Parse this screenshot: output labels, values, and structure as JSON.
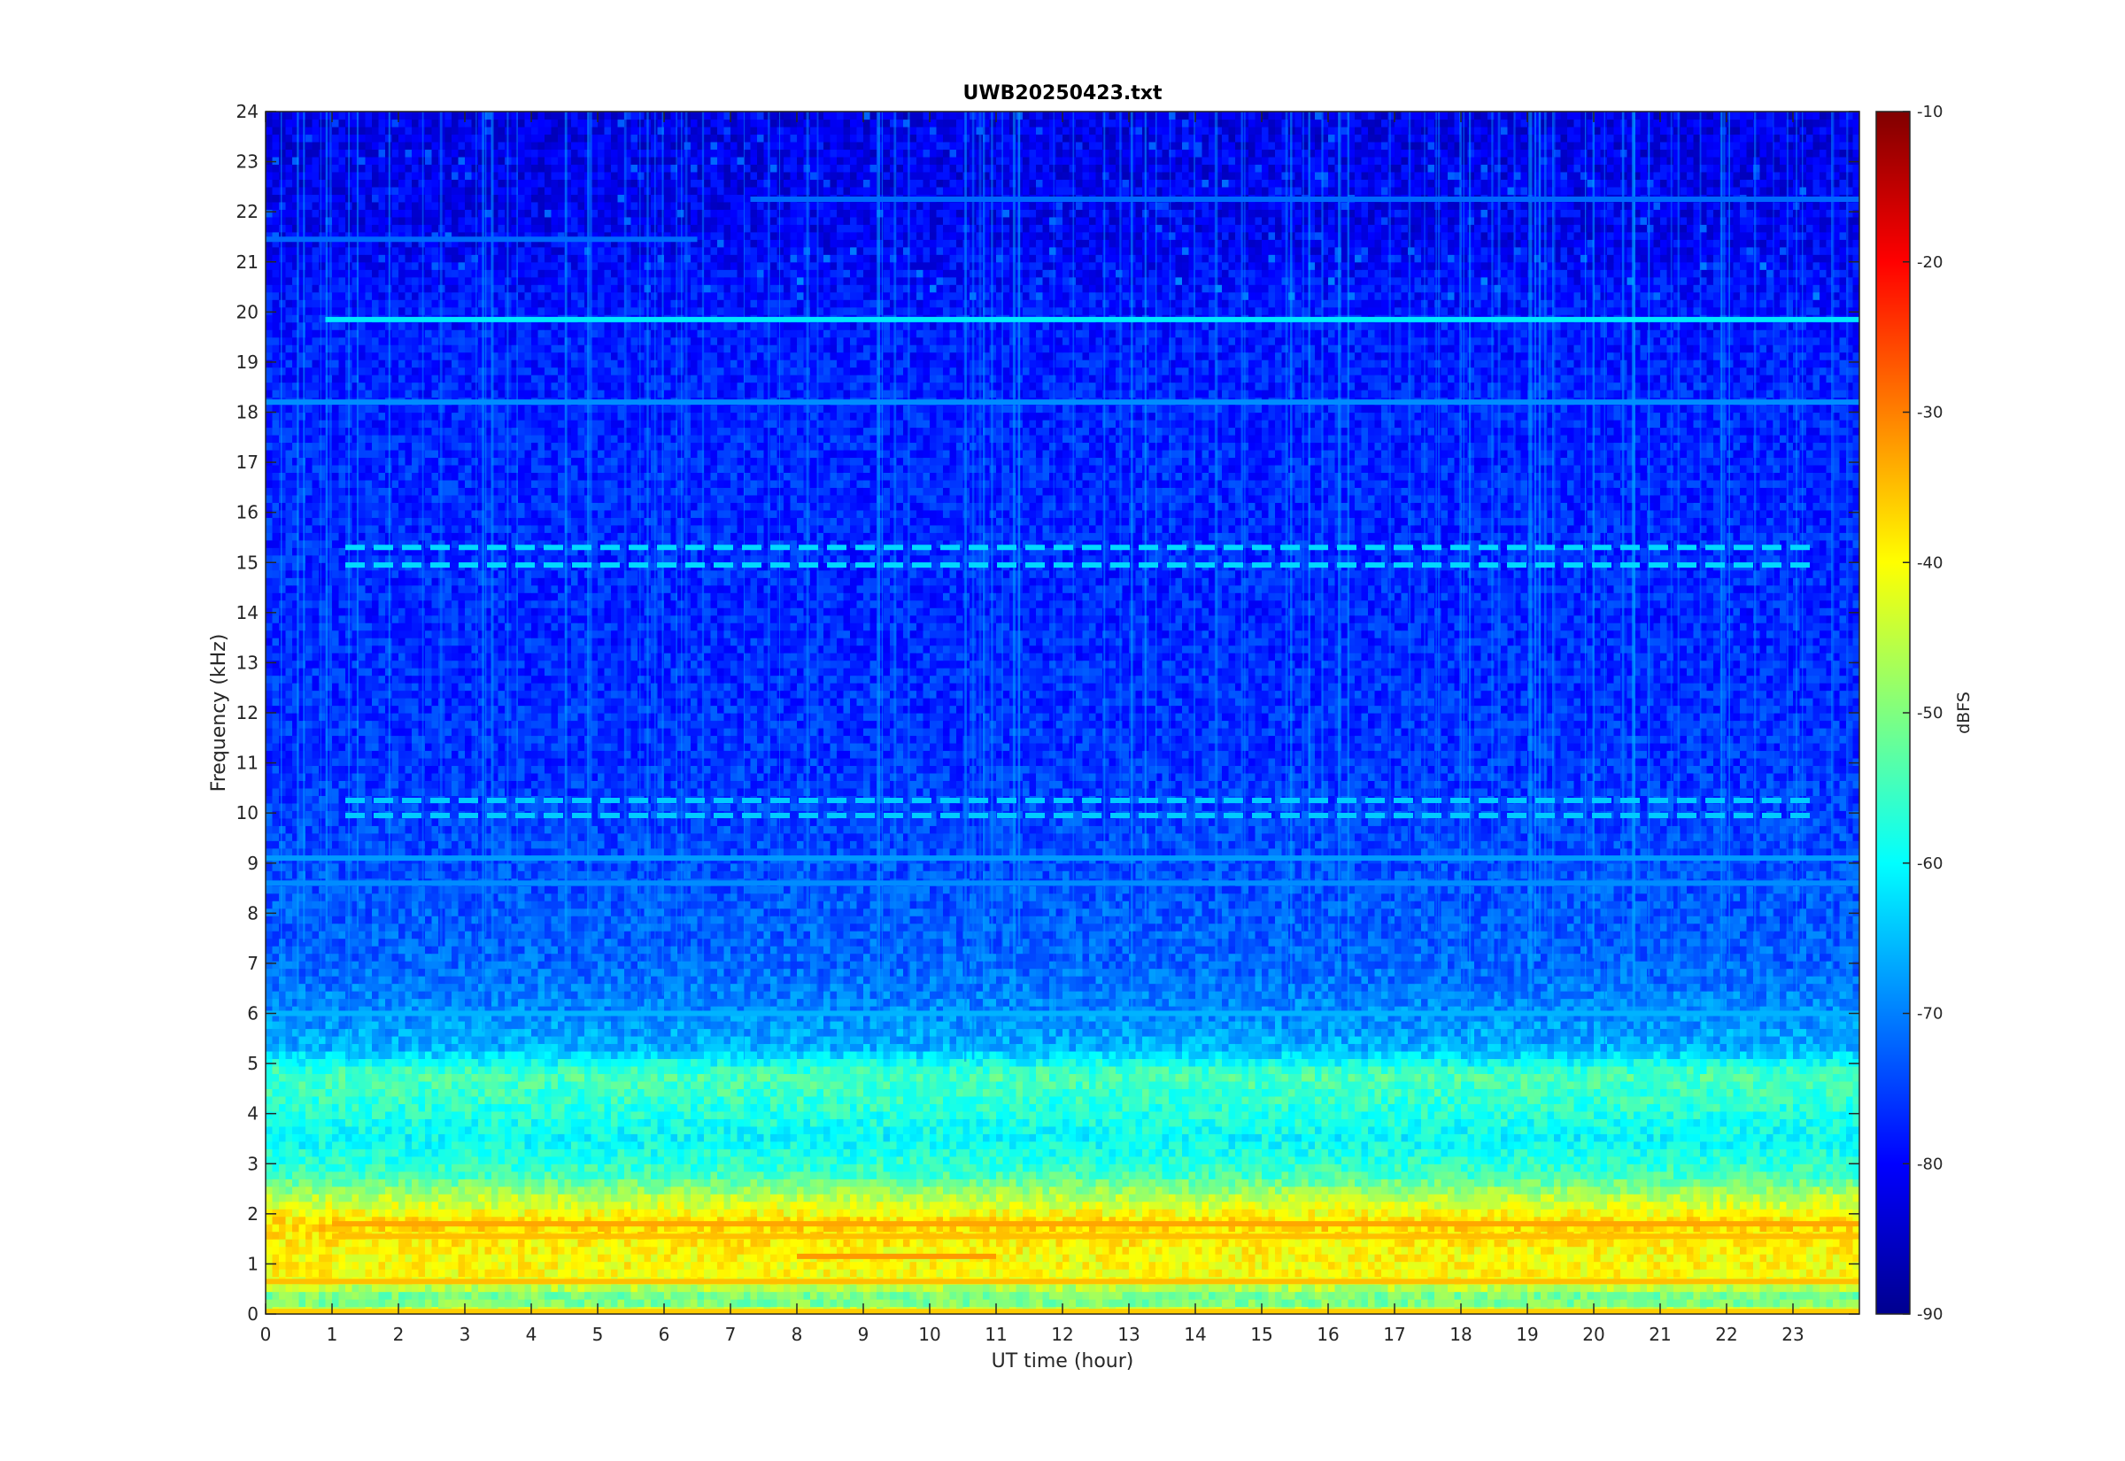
{
  "chart_data": {
    "type": "heatmap",
    "title": "UWB20250423.txt",
    "xlabel": "UT time (hour)",
    "ylabel": "Frequency (kHz)",
    "xlim": [
      0,
      24
    ],
    "ylim": [
      0,
      24
    ],
    "x_ticks": [
      0,
      1,
      2,
      3,
      4,
      5,
      6,
      7,
      8,
      9,
      10,
      11,
      12,
      13,
      14,
      15,
      16,
      17,
      18,
      19,
      20,
      21,
      22,
      23
    ],
    "y_ticks": [
      0,
      1,
      2,
      3,
      4,
      5,
      6,
      7,
      8,
      9,
      10,
      11,
      12,
      13,
      14,
      15,
      16,
      17,
      18,
      19,
      20,
      21,
      22,
      23,
      24
    ],
    "colorbar": {
      "label": "dBFS",
      "range": [
        -90,
        -10
      ],
      "ticks": [
        -10,
        -20,
        -30,
        -40,
        -50,
        -60,
        -70,
        -80,
        -90
      ],
      "colormap": "jet"
    },
    "grid": false,
    "level_profile": [
      {
        "freq_khz": 0.0,
        "dbfs": -42
      },
      {
        "freq_khz": 0.3,
        "dbfs": -53
      },
      {
        "freq_khz": 0.7,
        "dbfs": -40
      },
      {
        "freq_khz": 1.2,
        "dbfs": -40
      },
      {
        "freq_khz": 1.8,
        "dbfs": -37
      },
      {
        "freq_khz": 2.3,
        "dbfs": -45
      },
      {
        "freq_khz": 2.8,
        "dbfs": -55
      },
      {
        "freq_khz": 3.5,
        "dbfs": -60
      },
      {
        "freq_khz": 4.3,
        "dbfs": -56
      },
      {
        "freq_khz": 4.8,
        "dbfs": -54
      },
      {
        "freq_khz": 5.3,
        "dbfs": -66
      },
      {
        "freq_khz": 6.0,
        "dbfs": -69
      },
      {
        "freq_khz": 7.0,
        "dbfs": -72
      },
      {
        "freq_khz": 8.0,
        "dbfs": -73
      },
      {
        "freq_khz": 9.0,
        "dbfs": -74
      },
      {
        "freq_khz": 11.0,
        "dbfs": -76
      },
      {
        "freq_khz": 14.0,
        "dbfs": -77
      },
      {
        "freq_khz": 17.0,
        "dbfs": -77
      },
      {
        "freq_khz": 19.5,
        "dbfs": -78
      },
      {
        "freq_khz": 20.5,
        "dbfs": -79
      },
      {
        "freq_khz": 21.5,
        "dbfs": -81
      },
      {
        "freq_khz": 24.0,
        "dbfs": -82
      }
    ],
    "spectral_lines": [
      {
        "freq_khz": 19.85,
        "t_start": 0.9,
        "t_end": 24.0,
        "dbfs": -62
      },
      {
        "freq_khz": 18.2,
        "t_start": 0.0,
        "t_end": 24.0,
        "dbfs": -69
      },
      {
        "freq_khz": 15.3,
        "t_start": 1.2,
        "t_end": 23.3,
        "dbfs": -63
      },
      {
        "freq_khz": 14.95,
        "t_start": 1.2,
        "t_end": 23.3,
        "dbfs": -63
      },
      {
        "freq_khz": 10.25,
        "t_start": 1.2,
        "t_end": 23.3,
        "dbfs": -64
      },
      {
        "freq_khz": 9.95,
        "t_start": 1.2,
        "t_end": 23.3,
        "dbfs": -64
      },
      {
        "freq_khz": 21.45,
        "t_start": 0.0,
        "t_end": 6.5,
        "dbfs": -72
      },
      {
        "freq_khz": 22.25,
        "t_start": 7.3,
        "t_end": 24.0,
        "dbfs": -72
      },
      {
        "freq_khz": 9.1,
        "t_start": 0.0,
        "t_end": 24.0,
        "dbfs": -68
      },
      {
        "freq_khz": 8.6,
        "t_start": 0.0,
        "t_end": 24.0,
        "dbfs": -69
      },
      {
        "freq_khz": 6.0,
        "t_start": 0.0,
        "t_end": 24.0,
        "dbfs": -66
      },
      {
        "freq_khz": 1.8,
        "t_start": 1.0,
        "t_end": 24.0,
        "dbfs": -33
      },
      {
        "freq_khz": 1.55,
        "t_start": 1.0,
        "t_end": 24.0,
        "dbfs": -35
      },
      {
        "freq_khz": 1.15,
        "t_start": 8.0,
        "t_end": 11.0,
        "dbfs": -32
      },
      {
        "freq_khz": 0.65,
        "t_start": 0.0,
        "t_end": 24.0,
        "dbfs": -35
      },
      {
        "freq_khz": 0.05,
        "t_start": 0.0,
        "t_end": 24.0,
        "dbfs": -36
      }
    ],
    "series": []
  }
}
